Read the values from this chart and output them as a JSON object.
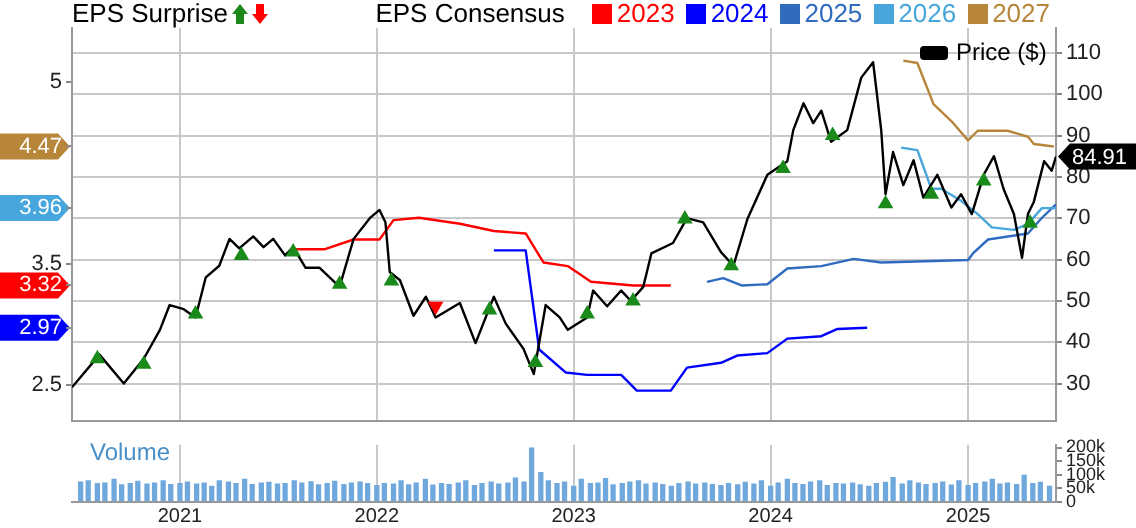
{
  "chart_data": [
    {
      "type": "line",
      "legend": "top",
      "legend_title": "EPS Consensus",
      "annotations": [
        "EPS Surprise"
      ],
      "grid": true,
      "tick_labels": "y",
      "xlim": [
        "2020-06-15",
        "2025-06-13"
      ],
      "xticks": [
        "2021",
        "2022",
        "2023",
        "2024",
        "2025"
      ],
      "ylim": [
        2.2,
        5.45
      ],
      "yticks": [
        2.5,
        {
          "value": 2.97,
          "label": "2.97"
        },
        {
          "value": 3.32,
          "label": "3.32"
        },
        3.5,
        {
          "value": 3.96,
          "label": "3.96"
        },
        {
          "value": 4.47,
          "label": "4.47"
        },
        5
      ],
      "y2lim": [
        21,
        116
      ],
      "y2ticks": [
        30,
        40,
        50,
        60,
        70,
        80,
        90,
        100,
        110
      ],
      "series": [
        {
          "name": "2023",
          "color": "#ff0000",
          "x": [
            "2021-07-30",
            "2021-09-27",
            "2021-11-19",
            "2022-01-06",
            "2022-02-01",
            "2022-03-20",
            "2022-06-04",
            "2022-08-06",
            "2022-10-04",
            "2022-11-06",
            "2022-12-21",
            "2023-02-02",
            "2023-04-21",
            "2023-06-30"
          ],
          "values": [
            3.62,
            3.62,
            3.7,
            3.7,
            3.86,
            3.88,
            3.83,
            3.77,
            3.75,
            3.51,
            3.48,
            3.35,
            3.32,
            3.32
          ]
        },
        {
          "name": "2024",
          "color": "#0000ff",
          "x": [
            "2022-08-06",
            "2022-10-04",
            "2022-10-29",
            "2022-12-17",
            "2023-01-26",
            "2023-03-30",
            "2023-04-28",
            "2023-06-30",
            "2023-07-30",
            "2023-10-01",
            "2023-10-31",
            "2023-12-26",
            "2024-02-01",
            "2024-04-04",
            "2024-05-04",
            "2024-06-28"
          ],
          "values": [
            3.61,
            3.61,
            2.79,
            2.6,
            2.58,
            2.58,
            2.45,
            2.45,
            2.64,
            2.68,
            2.74,
            2.76,
            2.88,
            2.9,
            2.96,
            2.97
          ]
        },
        {
          "name": "2025",
          "color": "#2f6bbf",
          "x": [
            "2023-09-05",
            "2023-10-05",
            "2023-11-08",
            "2023-12-26",
            "2024-02-01",
            "2024-04-04",
            "2024-06-03",
            "2024-07-24",
            "2025-01-01",
            "2025-01-11",
            "2025-02-07",
            "2025-04-22",
            "2025-05-18",
            "2025-06-13"
          ],
          "values": [
            3.35,
            3.38,
            3.32,
            3.33,
            3.46,
            3.48,
            3.54,
            3.51,
            3.53,
            3.59,
            3.7,
            3.75,
            3.88,
            3.99
          ]
        },
        {
          "name": "2026",
          "color": "#47a6dc",
          "x": [
            "2024-08-30",
            "2024-09-29",
            "2024-10-25",
            "2024-11-12",
            "2024-12-19",
            "2025-01-19",
            "2025-02-14",
            "2025-03-27",
            "2025-04-22",
            "2025-05-18",
            "2025-06-13"
          ],
          "values": [
            4.46,
            4.44,
            4.12,
            4.12,
            4.02,
            3.91,
            3.8,
            3.78,
            3.83,
            3.96,
            3.96
          ]
        },
        {
          "name": "2027",
          "color": "#b8863b",
          "x": [
            "2024-09-03",
            "2024-09-29",
            "2024-10-29",
            "2024-12-01",
            "2025-01-01",
            "2025-01-19",
            "2025-03-15",
            "2025-04-22",
            "2025-05-03",
            "2025-06-09"
          ],
          "values": [
            5.18,
            5.16,
            4.82,
            4.68,
            4.52,
            4.6,
            4.6,
            4.55,
            4.49,
            4.47
          ]
        },
        {
          "name": "Price ($)",
          "color": "#000000",
          "axis": "y2",
          "x": [
            "2020-06-15",
            "2020-08-05",
            "2020-09-19",
            "2020-10-26",
            "2020-11-25",
            "2020-12-13",
            "2021-01-08",
            "2021-01-30",
            "2021-02-18",
            "2021-03-15",
            "2021-04-03",
            "2021-04-21",
            "2021-05-17",
            "2021-06-05",
            "2021-06-23",
            "2021-07-15",
            "2021-07-30",
            "2021-08-22",
            "2021-09-17",
            "2021-10-24",
            "2021-11-19",
            "2021-12-19",
            "2022-01-06",
            "2022-01-17",
            "2022-01-25",
            "2022-02-13",
            "2022-03-10",
            "2022-04-02",
            "2022-04-20",
            "2022-06-04",
            "2022-07-03",
            "2022-08-06",
            "2022-08-28",
            "2022-09-30",
            "2022-10-19",
            "2022-11-10",
            "2022-12-06",
            "2022-12-21",
            "2023-01-26",
            "2023-02-06",
            "2023-03-04",
            "2023-03-30",
            "2023-04-17",
            "2023-05-10",
            "2023-05-25",
            "2023-07-04",
            "2023-07-30",
            "2023-08-29",
            "2023-10-01",
            "2023-10-24",
            "2023-11-19",
            "2023-12-26",
            "2024-02-01",
            "2024-02-12",
            "2024-03-02",
            "2024-03-20",
            "2024-04-04",
            "2024-04-22",
            "2024-05-22",
            "2024-06-17",
            "2024-07-09",
            "2024-07-24",
            "2024-08-01",
            "2024-08-15",
            "2024-09-03",
            "2024-09-22",
            "2024-10-10",
            "2024-11-05",
            "2024-12-01",
            "2024-12-19",
            "2025-01-08",
            "2025-01-30",
            "2025-02-18",
            "2025-03-08",
            "2025-03-27",
            "2025-04-11",
            "2025-04-22",
            "2025-05-03",
            "2025-05-22",
            "2025-06-05",
            "2025-06-13"
          ],
          "values": [
            29.1,
            37,
            30,
            36,
            43,
            49,
            48,
            46,
            55.7,
            58.5,
            65,
            62.7,
            65.6,
            63,
            65,
            61,
            63,
            58,
            58,
            53.4,
            65,
            70,
            72,
            69,
            57,
            55,
            46.4,
            51,
            46,
            49.5,
            39.8,
            51,
            44.5,
            38.4,
            32.3,
            49,
            46,
            43,
            46,
            52.5,
            48.7,
            52.5,
            50,
            53.4,
            61.5,
            64,
            70,
            69,
            61.8,
            58.5,
            69.8,
            80.5,
            83.8,
            91.3,
            97.8,
            93,
            96,
            88.5,
            91.3,
            104,
            107.7,
            91.3,
            75.8,
            86,
            78,
            84,
            75,
            80.5,
            72.6,
            75.8,
            71,
            80.5,
            85,
            77,
            71,
            60.4,
            71,
            74,
            83.8,
            81.5,
            84.91
          ],
          "value_labels": [
            null,
            null,
            null,
            null,
            null,
            null,
            null,
            null,
            null,
            null,
            null,
            null,
            null,
            null,
            null,
            null,
            null,
            null,
            null,
            null,
            null,
            null,
            null,
            null,
            null,
            null,
            null,
            null,
            null,
            null,
            null,
            null,
            null,
            null,
            null,
            null,
            null,
            null,
            null,
            null,
            null,
            null,
            null,
            null,
            null,
            null,
            null,
            null,
            null,
            null,
            null,
            null,
            null,
            null,
            null,
            null,
            null,
            null,
            null,
            null,
            null,
            null,
            null,
            null,
            null,
            null,
            null,
            null,
            null,
            null,
            null,
            null,
            null,
            null,
            null,
            null,
            null,
            null,
            null,
            null,
            "84.91"
          ]
        },
        {
          "type": "scatter",
          "marker": "triangle",
          "color": "#1a8a1a",
          "axis": "y2",
          "x": [
            "2020-08-01",
            "2020-10-26",
            "2021-01-30",
            "2021-04-25",
            "2021-07-30",
            "2021-10-24",
            "2022-01-28",
            "2022-07-29",
            "2022-10-22",
            "2023-01-26",
            "2023-04-21",
            "2023-07-26",
            "2023-10-20",
            "2024-01-24",
            "2024-04-25",
            "2024-08-01",
            "2024-10-25",
            "2025-01-30",
            "2025-04-26"
          ],
          "values": [
            36,
            34.7,
            46.8,
            61,
            61.8,
            54,
            54.8,
            47.8,
            35.1,
            46.8,
            50,
            69.8,
            58.5,
            82,
            90,
            73.5,
            75.8,
            79,
            68.8
          ]
        },
        {
          "type": "scatter",
          "marker": "triangle",
          "color": "#ff0000",
          "axis": "y2",
          "x": [
            "2022-04-20"
          ],
          "values": [
            48.7
          ]
        }
      ]
    },
    {
      "type": "bar",
      "title": "Volume",
      "grid": "x",
      "color": "#6fa8dc",
      "xlim": [
        "2020-06-15",
        "2025-06-13"
      ],
      "xticks": [
        "2021",
        "2022",
        "2023",
        "2024",
        "2025"
      ],
      "ylim": [
        0,
        210000
      ],
      "yticks": [
        0,
        {
          "value": 50000,
          "label": "50k"
        },
        {
          "value": 100000,
          "label": "100k"
        },
        {
          "value": 150000,
          "label": "150k"
        },
        {
          "value": 200000,
          "label": "200k"
        }
      ],
      "x": [
        "2020-07-01",
        "2020-07-15",
        "2020-08-01",
        "2020-08-15",
        "2020-09-01",
        "2020-09-15",
        "2020-10-01",
        "2020-10-15",
        "2020-11-01",
        "2020-11-15",
        "2020-12-01",
        "2020-12-15",
        "2021-01-01",
        "2021-01-15",
        "2021-02-01",
        "2021-02-15",
        "2021-03-01",
        "2021-03-15",
        "2021-04-01",
        "2021-04-15",
        "2021-05-01",
        "2021-05-15",
        "2021-06-01",
        "2021-06-15",
        "2021-07-01",
        "2021-07-15",
        "2021-08-01",
        "2021-08-15",
        "2021-09-01",
        "2021-09-15",
        "2021-10-01",
        "2021-10-15",
        "2021-11-01",
        "2021-11-15",
        "2021-12-01",
        "2021-12-15",
        "2022-01-01",
        "2022-01-15",
        "2022-02-01",
        "2022-02-15",
        "2022-03-01",
        "2022-03-15",
        "2022-04-01",
        "2022-04-15",
        "2022-05-01",
        "2022-05-15",
        "2022-06-01",
        "2022-06-15",
        "2022-07-01",
        "2022-07-15",
        "2022-08-01",
        "2022-08-15",
        "2022-09-01",
        "2022-09-15",
        "2022-10-01",
        "2022-10-15",
        "2022-11-01",
        "2022-11-15",
        "2022-12-01",
        "2022-12-15",
        "2023-01-01",
        "2023-01-15",
        "2023-02-01",
        "2023-02-15",
        "2023-03-01",
        "2023-03-15",
        "2023-04-01",
        "2023-04-15",
        "2023-05-01",
        "2023-05-15",
        "2023-06-01",
        "2023-06-15",
        "2023-07-01",
        "2023-07-15",
        "2023-08-01",
        "2023-08-15",
        "2023-09-01",
        "2023-09-15",
        "2023-10-01",
        "2023-10-15",
        "2023-11-01",
        "2023-11-15",
        "2023-12-01",
        "2023-12-15",
        "2024-01-01",
        "2024-01-15",
        "2024-02-01",
        "2024-02-15",
        "2024-03-01",
        "2024-03-15",
        "2024-04-01",
        "2024-04-15",
        "2024-05-01",
        "2024-05-15",
        "2024-06-01",
        "2024-06-15",
        "2024-07-01",
        "2024-07-15",
        "2024-08-01",
        "2024-08-15",
        "2024-09-01",
        "2024-09-15",
        "2024-10-01",
        "2024-10-15",
        "2024-11-01",
        "2024-11-15",
        "2024-12-01",
        "2024-12-15",
        "2025-01-01",
        "2025-01-15",
        "2025-02-01",
        "2025-02-15",
        "2025-03-01",
        "2025-03-15",
        "2025-04-01",
        "2025-04-15",
        "2025-05-01",
        "2025-05-15",
        "2025-06-01"
      ],
      "values": [
        75000,
        80000,
        70000,
        72000,
        85000,
        65000,
        70000,
        78000,
        68000,
        72000,
        80000,
        66000,
        70000,
        75000,
        68000,
        72000,
        60000,
        80000,
        75000,
        70000,
        85000,
        66000,
        72000,
        74000,
        68000,
        70000,
        80000,
        72000,
        76000,
        65000,
        70000,
        78000,
        66000,
        72000,
        75000,
        70000,
        62000,
        70000,
        68000,
        80000,
        65000,
        72000,
        85000,
        64000,
        70000,
        66000,
        72000,
        80000,
        62000,
        70000,
        75000,
        68000,
        72000,
        90000,
        75000,
        200000,
        110000,
        80000,
        70000,
        75000,
        60000,
        85000,
        70000,
        72000,
        88000,
        65000,
        70000,
        75000,
        80000,
        68000,
        72000,
        66000,
        60000,
        70000,
        75000,
        68000,
        72000,
        66000,
        62000,
        70000,
        65000,
        74000,
        68000,
        80000,
        60000,
        72000,
        85000,
        70000,
        66000,
        75000,
        80000,
        62000,
        70000,
        68000,
        72000,
        65000,
        60000,
        70000,
        74000,
        92000,
        68000,
        80000,
        72000,
        66000,
        70000,
        75000,
        64000,
        80000,
        62000,
        70000,
        75000,
        85000,
        68000,
        72000,
        66000,
        100000,
        70000,
        74000,
        60000
      ]
    }
  ]
}
